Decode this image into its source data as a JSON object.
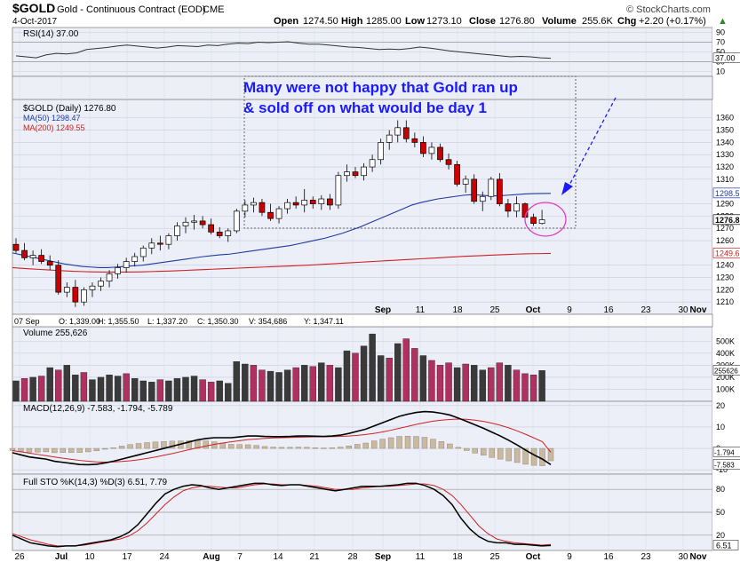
{
  "header": {
    "symbol": "$GOLD",
    "name": "Gold - Continuous Contract (EOD)",
    "exchange": "CME",
    "date": "4-Oct-2017",
    "open_label": "Open",
    "open": "1274.50",
    "high_label": "High",
    "high": "1285.00",
    "low_label": "Low",
    "low": "1273.10",
    "close_label": "Close",
    "close": "1276.80",
    "volume_label": "Volume",
    "volume": "255.6K",
    "chg_label": "Chg",
    "chg": "+2.20 (+0.17%)",
    "chg_arrow": "▲",
    "watermark": "© StockCharts.com"
  },
  "annotation": {
    "line1": "Many were not happy that Gold ran up",
    "line2": "& sold off on what would be day 1",
    "color": "#1a1aff",
    "circle_color": "#e040c0"
  },
  "colors": {
    "up": "#ffffff",
    "down": "#cc0000",
    "bg": "#eceff7",
    "ma50": "#1f3aa0",
    "ma200": "#cc2222",
    "vol_up": "#3a3a3a",
    "vol_down": "#b03060",
    "macd_hist": "#c9b9a0"
  },
  "chart_data": [
    {
      "type": "line",
      "panel": "rsi",
      "title": "RSI(14) 37.00",
      "last_label": "37.00",
      "ylim": [
        0,
        100
      ],
      "yticks": [
        "90",
        "70",
        "50",
        "30",
        "10"
      ],
      "levels": [
        70,
        30
      ],
      "values": [
        42,
        40,
        38,
        44,
        47,
        46,
        48,
        55,
        57,
        59,
        62,
        64,
        62,
        60,
        58,
        60,
        63,
        62,
        61,
        64,
        63,
        66,
        68,
        67,
        70,
        69,
        70,
        71,
        68,
        66,
        66,
        64,
        62,
        60,
        59,
        57,
        55,
        56,
        55,
        57,
        60,
        58,
        55,
        52,
        50,
        48,
        46,
        44,
        42,
        40,
        41,
        40,
        38,
        37
      ]
    },
    {
      "type": "candlestick",
      "panel": "price",
      "title": "$GOLD (Daily) 1276.80",
      "series": [
        {
          "name": "MA(50) 1298.47",
          "last": 1298.47
        },
        {
          "name": "MA(200) 1249.55",
          "last": 1249.55
        }
      ],
      "right_labels": [
        "1298.5",
        "1276.8",
        "1249.6"
      ],
      "ylim": [
        1200,
        1375
      ],
      "yticks": [
        "1360",
        "1350",
        "1340",
        "1330",
        "1320",
        "1310",
        "1290",
        "1280",
        "1270",
        "1260",
        "1240",
        "1230",
        "1220",
        "1210"
      ],
      "ohlc": [
        [
          1257,
          1262,
          1250,
          1252
        ],
        [
          1252,
          1258,
          1244,
          1246
        ],
        [
          1246,
          1252,
          1240,
          1248
        ],
        [
          1248,
          1253,
          1241,
          1243
        ],
        [
          1243,
          1248,
          1236,
          1240
        ],
        [
          1240,
          1244,
          1216,
          1218
        ],
        [
          1218,
          1226,
          1214,
          1222
        ],
        [
          1222,
          1228,
          1206,
          1210
        ],
        [
          1210,
          1222,
          1207,
          1220
        ],
        [
          1220,
          1226,
          1214,
          1223
        ],
        [
          1223,
          1230,
          1219,
          1227
        ],
        [
          1227,
          1236,
          1222,
          1233
        ],
        [
          1233,
          1241,
          1229,
          1238
        ],
        [
          1238,
          1246,
          1234,
          1243
        ],
        [
          1243,
          1250,
          1239,
          1247
        ],
        [
          1247,
          1256,
          1243,
          1254
        ],
        [
          1254,
          1262,
          1249,
          1258
        ],
        [
          1258,
          1264,
          1252,
          1257
        ],
        [
          1257,
          1266,
          1253,
          1264
        ],
        [
          1264,
          1275,
          1260,
          1272
        ],
        [
          1272,
          1279,
          1266,
          1275
        ],
        [
          1275,
          1281,
          1269,
          1276
        ],
        [
          1276,
          1280,
          1270,
          1273
        ],
        [
          1273,
          1278,
          1265,
          1267
        ],
        [
          1267,
          1271,
          1262,
          1264
        ],
        [
          1264,
          1270,
          1259,
          1268
        ],
        [
          1268,
          1286,
          1266,
          1284
        ],
        [
          1284,
          1293,
          1279,
          1289
        ],
        [
          1289,
          1295,
          1283,
          1291
        ],
        [
          1291,
          1294,
          1280,
          1283
        ],
        [
          1283,
          1290,
          1276,
          1278
        ],
        [
          1278,
          1288,
          1274,
          1286
        ],
        [
          1286,
          1294,
          1282,
          1291
        ],
        [
          1291,
          1296,
          1286,
          1289
        ],
        [
          1289,
          1302,
          1283,
          1293
        ],
        [
          1293,
          1296,
          1286,
          1290
        ],
        [
          1290,
          1297,
          1285,
          1294
        ],
        [
          1294,
          1298,
          1285,
          1289
        ],
        [
          1289,
          1316,
          1286,
          1313
        ],
        [
          1313,
          1322,
          1308,
          1316
        ],
        [
          1316,
          1320,
          1311,
          1313
        ],
        [
          1313,
          1323,
          1309,
          1320
        ],
        [
          1320,
          1330,
          1316,
          1326
        ],
        [
          1326,
          1343,
          1322,
          1340
        ],
        [
          1340,
          1350,
          1334,
          1346
        ],
        [
          1346,
          1358,
          1340,
          1352
        ],
        [
          1352,
          1358,
          1340,
          1343
        ],
        [
          1343,
          1348,
          1336,
          1340
        ],
        [
          1340,
          1345,
          1328,
          1331
        ],
        [
          1331,
          1340,
          1326,
          1336
        ],
        [
          1336,
          1339,
          1324,
          1326
        ],
        [
          1326,
          1331,
          1318,
          1322
        ],
        [
          1322,
          1325,
          1304,
          1306
        ],
        [
          1306,
          1313,
          1299,
          1310
        ],
        [
          1310,
          1314,
          1290,
          1292
        ],
        [
          1292,
          1300,
          1284,
          1296
        ],
        [
          1296,
          1312,
          1293,
          1310
        ],
        [
          1310,
          1315,
          1288,
          1290
        ],
        [
          1290,
          1294,
          1279,
          1284
        ],
        [
          1284,
          1296,
          1279,
          1290
        ],
        [
          1290,
          1291,
          1275,
          1279
        ],
        [
          1279,
          1282,
          1272,
          1274
        ],
        [
          1274,
          1285,
          1273,
          1277
        ]
      ],
      "ma50": [
        1250,
        1248.5,
        1247,
        1245.5,
        1244,
        1242.5,
        1241,
        1240,
        1239,
        1238.5,
        1238,
        1238,
        1238.5,
        1239,
        1239.5,
        1240,
        1241,
        1242,
        1243,
        1244,
        1245,
        1246,
        1247,
        1247.8,
        1248.5,
        1249,
        1250,
        1251,
        1252,
        1253,
        1254,
        1255,
        1256,
        1257.5,
        1259,
        1260.5,
        1262,
        1264,
        1266,
        1268.5,
        1271,
        1274,
        1277,
        1280,
        1283,
        1286,
        1289,
        1291,
        1292.5,
        1294,
        1295,
        1296,
        1297,
        1297.5,
        1297,
        1296.5,
        1296.5,
        1297,
        1297.5,
        1298,
        1298.3,
        1298.4,
        1298.47
      ],
      "ma200": [
        1238,
        1237.5,
        1237,
        1236.6,
        1236.2,
        1235.8,
        1235.4,
        1235,
        1234.8,
        1234.6,
        1234.5,
        1234.4,
        1234.4,
        1234.4,
        1234.5,
        1234.6,
        1234.8,
        1235,
        1235.2,
        1235.5,
        1235.8,
        1236.1,
        1236.4,
        1236.7,
        1237,
        1237.3,
        1237.6,
        1237.9,
        1238.2,
        1238.5,
        1238.8,
        1239.1,
        1239.4,
        1239.7,
        1240,
        1240.4,
        1240.8,
        1241.2,
        1241.6,
        1242,
        1242.4,
        1242.8,
        1243.2,
        1243.6,
        1244,
        1244.4,
        1244.8,
        1245.2,
        1245.6,
        1246,
        1246.4,
        1246.8,
        1247.2,
        1247.5,
        1247.8,
        1248.1,
        1248.4,
        1248.7,
        1249,
        1249.2,
        1249.35,
        1249.45,
        1249.55
      ]
    },
    {
      "type": "text",
      "panel": "info",
      "values": [
        "07 Sep",
        "O: 1,339.00",
        "H: 1,355.50",
        "L: 1,337.20",
        "C: 1,350.30",
        "V: 354,686",
        "Y: 1,347.11"
      ]
    },
    {
      "type": "bar",
      "panel": "volume",
      "title": "Volume 255,626",
      "last_label": "255626",
      "ylim": [
        0,
        620
      ],
      "yticks": [
        "500K",
        "400K",
        "300K",
        "200K",
        "100K"
      ],
      "values": [
        170,
        190,
        200,
        210,
        280,
        260,
        300,
        220,
        240,
        180,
        200,
        220,
        210,
        230,
        190,
        170,
        160,
        180,
        170,
        190,
        200,
        210,
        180,
        160,
        170,
        150,
        330,
        310,
        300,
        260,
        250,
        240,
        260,
        280,
        300,
        290,
        320,
        300,
        280,
        420,
        400,
        460,
        560,
        380,
        360,
        480,
        520,
        440,
        380,
        340,
        300,
        320,
        280,
        310,
        300,
        260,
        280,
        320,
        300,
        260,
        230,
        220,
        256
      ],
      "up": [
        1,
        0,
        1,
        0,
        1,
        0,
        1,
        1,
        0,
        1,
        1,
        1,
        1,
        0,
        1,
        1,
        1,
        0,
        1,
        1,
        1,
        1,
        0,
        0,
        1,
        1,
        1,
        1,
        0,
        0,
        1,
        1,
        1,
        0,
        1,
        0,
        1,
        0,
        1,
        1,
        0,
        1,
        1,
        1,
        0,
        1,
        0,
        0,
        1,
        0,
        0,
        0,
        1,
        0,
        1,
        1,
        0,
        0,
        1,
        0,
        0,
        0,
        1
      ]
    },
    {
      "type": "line",
      "panel": "macd",
      "title": "MACD(12,26,9) -7.583, -1.794, -5.789",
      "right_labels": [
        "-1.794",
        "-7.583"
      ],
      "ylim": [
        -12,
        22
      ],
      "yticks": [
        "20",
        "10",
        "0",
        "-10"
      ],
      "macd": [
        -2,
        -3,
        -4,
        -4.5,
        -5,
        -6,
        -6.5,
        -7,
        -7.5,
        -7.6,
        -7.4,
        -6.8,
        -6,
        -5,
        -4,
        -3,
        -2,
        -1,
        0,
        1,
        2,
        3,
        4,
        4.6,
        5,
        5,
        5,
        5.4,
        5.8,
        5.8,
        5.6,
        5.5,
        5.5,
        5.6,
        5.8,
        5.8,
        5.7,
        5.6,
        5.8,
        6.2,
        7,
        8,
        9,
        10.5,
        12,
        13.5,
        15,
        16,
        16.8,
        17.2,
        17,
        16.4,
        15.6,
        14.2,
        12.6,
        11,
        9.4,
        7.6,
        5.8,
        3.8,
        1.6,
        -0.8,
        -3,
        -5,
        -7.583
      ],
      "signal": [
        -1,
        -1.6,
        -2.2,
        -2.8,
        -3.4,
        -4,
        -4.6,
        -5.1,
        -5.6,
        -6,
        -6.3,
        -6.4,
        -6.3,
        -6.1,
        -5.8,
        -5.3,
        -4.7,
        -4,
        -3.2,
        -2.4,
        -1.5,
        -0.6,
        0.3,
        1.1,
        1.9,
        2.5,
        3.1,
        3.6,
        4.1,
        4.4,
        4.7,
        4.9,
        5,
        5.1,
        5.2,
        5.3,
        5.4,
        5.4,
        5.5,
        5.6,
        5.8,
        6.1,
        6.5,
        7,
        7.7,
        8.5,
        9.4,
        10.3,
        11.2,
        12,
        12.7,
        13.2,
        13.5,
        13.7,
        13.6,
        13.2,
        12.6,
        11.8,
        10.8,
        9.6,
        8.2,
        6.6,
        4.9,
        3.1,
        -1.794
      ]
    },
    {
      "type": "line",
      "panel": "sto",
      "title": "Full STO %K(14,3) %D(3) 6.51, 7.79",
      "last_label": "6.51",
      "ylim": [
        0,
        100
      ],
      "yticks": [
        "80",
        "50",
        "20"
      ],
      "k": [
        20,
        15,
        10,
        8,
        6,
        5,
        6,
        6,
        8,
        10,
        12,
        14,
        18,
        24,
        34,
        48,
        62,
        74,
        80,
        84,
        86,
        85,
        82,
        80,
        82,
        84,
        86,
        88,
        88,
        86,
        85,
        86,
        86,
        84,
        82,
        80,
        78,
        80,
        82,
        84,
        84,
        84,
        85,
        86,
        88,
        88,
        85,
        80,
        72,
        60,
        42,
        28,
        18,
        12,
        10,
        10,
        8,
        8,
        7,
        6,
        6.51
      ],
      "d": [
        22,
        18,
        14,
        11,
        8,
        6,
        6,
        6,
        7,
        9,
        11,
        13,
        15,
        19,
        26,
        36,
        48,
        60,
        70,
        78,
        82,
        84,
        84,
        83,
        82,
        82,
        84,
        86,
        87,
        87,
        86,
        86,
        86,
        85,
        84,
        82,
        80,
        80,
        80,
        82,
        83,
        84,
        84,
        85,
        86,
        87,
        87,
        85,
        80,
        72,
        60,
        46,
        32,
        22,
        15,
        12,
        10,
        9,
        8,
        7,
        7.79
      ]
    }
  ],
  "x_axis": {
    "labels": [
      "26",
      "Jul",
      "10",
      "17",
      "24",
      "Aug",
      "7",
      "14",
      "21",
      "28",
      "Sep",
      "11",
      "18",
      "25",
      "Oct",
      "9",
      "16",
      "23",
      "30",
      "Nov"
    ],
    "bold": [
      "Jul",
      "Aug",
      "Sep",
      "Oct",
      "Nov"
    ]
  }
}
